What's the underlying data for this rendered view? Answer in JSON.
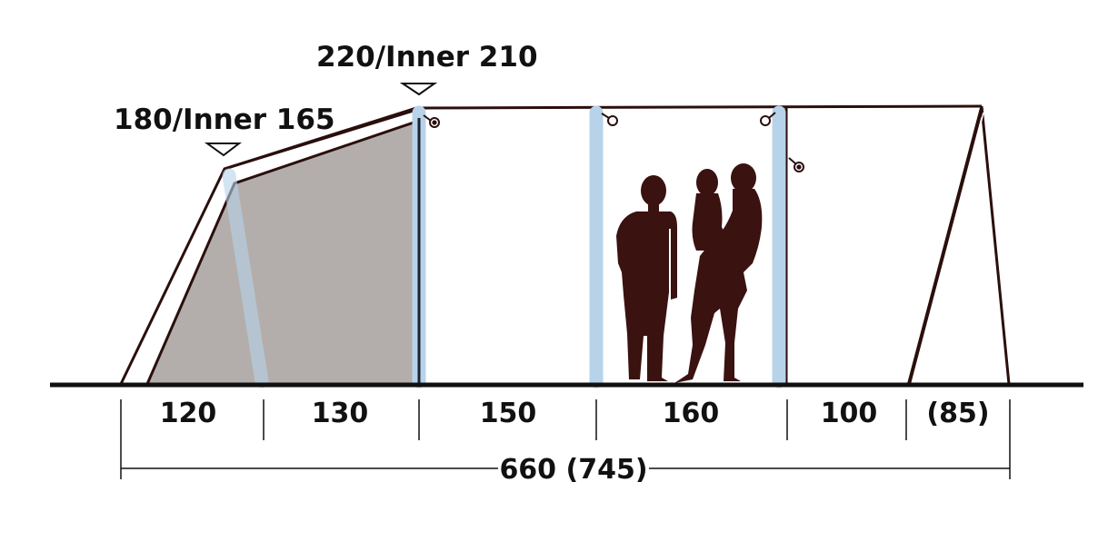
{
  "heights": {
    "front": "180/Inner 165",
    "peak": "220/Inner 210"
  },
  "segments": [
    "120",
    "130",
    "150",
    "160",
    "100",
    "(85)"
  ],
  "total": "660 (745)",
  "colors": {
    "outline": "#2a0f0c",
    "bedroom_fill": "#b3aeab",
    "pole": "#b7d3ea",
    "silhouette": "#3a1210",
    "ground": "#111111"
  }
}
